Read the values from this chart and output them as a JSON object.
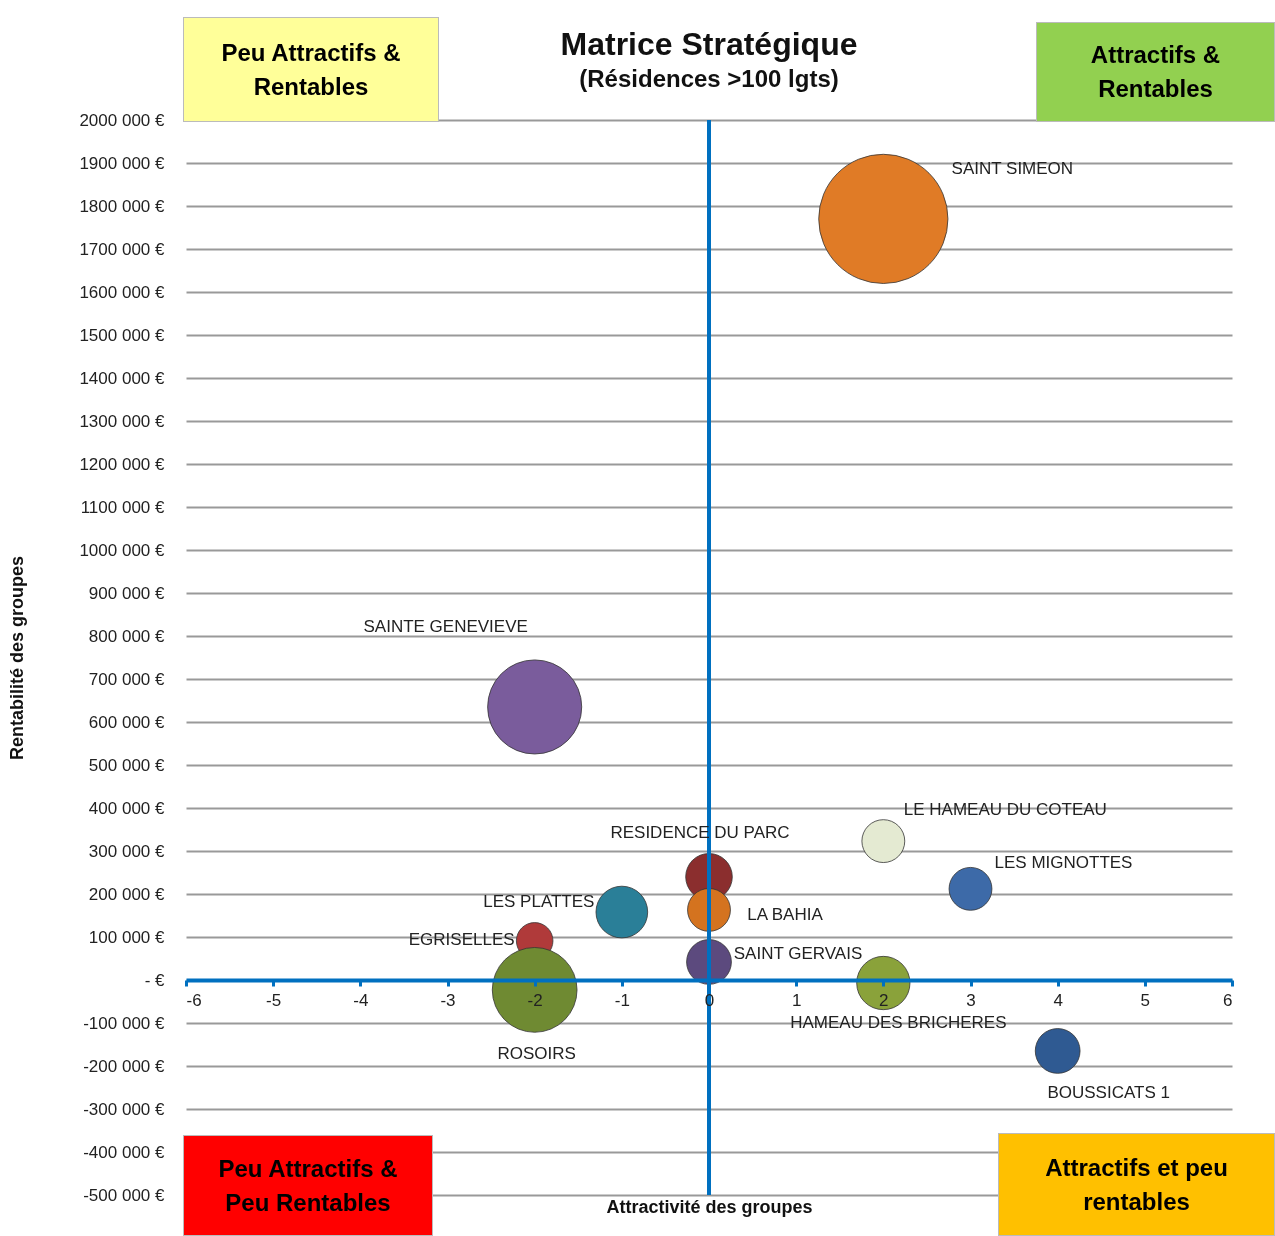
{
  "chart_data": {
    "type": "bubble",
    "title": "Matrice Stratégique",
    "subtitle": "(Résidences >100 lgts)",
    "xlabel": "Attractivité des groupes",
    "ylabel": "Rentabilité des groupes",
    "annotations": [
      "Peu Attractifs & Rentables",
      "Attractifs & Rentables",
      "Peu Attractifs & Peu Rentables",
      "Attractifs et peu rentables"
    ],
    "xlim": [
      -6,
      6
    ],
    "xticks": [
      -6,
      -5,
      -4,
      -3,
      -2,
      -1,
      0,
      1,
      2,
      3,
      4,
      5,
      6
    ],
    "ylim": [
      -500000,
      2000000
    ],
    "yticks": [
      {
        "value": 2000000,
        "label": "2000 000 €"
      },
      {
        "value": 1900000,
        "label": "1900 000 €"
      },
      {
        "value": 1800000,
        "label": "1800 000 €"
      },
      {
        "value": 1700000,
        "label": "1700 000 €"
      },
      {
        "value": 1600000,
        "label": "1600 000 €"
      },
      {
        "value": 1500000,
        "label": "1500 000 €"
      },
      {
        "value": 1400000,
        "label": "1400 000 €"
      },
      {
        "value": 1300000,
        "label": "1300 000 €"
      },
      {
        "value": 1200000,
        "label": "1200 000 €"
      },
      {
        "value": 1100000,
        "label": "1100 000 €"
      },
      {
        "value": 1000000,
        "label": "1000 000 €"
      },
      {
        "value": 900000,
        "label": "900 000 €"
      },
      {
        "value": 800000,
        "label": "800 000 €"
      },
      {
        "value": 700000,
        "label": "700 000 €"
      },
      {
        "value": 600000,
        "label": "600 000 €"
      },
      {
        "value": 500000,
        "label": "500 000 €"
      },
      {
        "value": 400000,
        "label": "400 000 €"
      },
      {
        "value": 300000,
        "label": "300 000 €"
      },
      {
        "value": 200000,
        "label": "200 000 €"
      },
      {
        "value": 100000,
        "label": "100 000 €"
      },
      {
        "value": 0,
        "label": "-   €"
      },
      {
        "value": -100000,
        "label": "-100 000 €"
      },
      {
        "value": -200000,
        "label": "-200 000 €"
      },
      {
        "value": -300000,
        "label": "-300 000 €"
      },
      {
        "value": -400000,
        "label": "-400 000 €"
      },
      {
        "value": -500000,
        "label": "-500 000 €"
      }
    ],
    "grid": "y",
    "ref_lines": [
      {
        "axis": "x",
        "value": 0,
        "color": "#0070c0"
      }
    ],
    "series": [
      {
        "name": "SAINT SIMEON",
        "color": "#e07b26",
        "x": [
          2
        ],
        "values": [
          1770000
        ],
        "sizes": [
          1
        ]
      },
      {
        "name": "SAINTE GENEVIEVE",
        "color": "#7a5c9c",
        "x": [
          -2
        ],
        "values": [
          635000
        ],
        "sizes": [
          0.53
        ]
      },
      {
        "name": "LE HAMEAU DU COTEAU",
        "color": "#e4ead2",
        "x": [
          2
        ],
        "values": [
          323000
        ],
        "sizes": [
          0.11
        ]
      },
      {
        "name": "LES MIGNOTTES",
        "color": "#3d6aa8",
        "x": [
          3
        ],
        "values": [
          212000
        ],
        "sizes": [
          0.11
        ]
      },
      {
        "name": "RESIDENCE DU PARC",
        "color": "#8b2e2e",
        "x": [
          0
        ],
        "values": [
          240000
        ],
        "sizes": [
          0.13
        ]
      },
      {
        "name": "LA BAHIA",
        "color": "#d4731f",
        "x": [
          0
        ],
        "values": [
          163000
        ],
        "sizes": [
          0.11
        ]
      },
      {
        "name": "LES PLATTES",
        "color": "#2a7f98",
        "x": [
          -1
        ],
        "values": [
          158000
        ],
        "sizes": [
          0.16
        ]
      },
      {
        "name": "EGRISELLES",
        "color": "#b03a3a",
        "x": [
          -2
        ],
        "values": [
          91000
        ],
        "sizes": [
          0.08
        ]
      },
      {
        "name": "SAINT GERVAIS",
        "color": "#5c4a7e",
        "x": [
          0
        ],
        "values": [
          42000
        ],
        "sizes": [
          0.12
        ]
      },
      {
        "name": "ROSOIRS",
        "color": "#6f8a32",
        "x": [
          -2
        ],
        "values": [
          -23000
        ],
        "sizes": [
          0.43
        ]
      },
      {
        "name": "HAMEAU DES BRICHERES",
        "color": "#8aa23a",
        "x": [
          2
        ],
        "values": [
          -7000
        ],
        "sizes": [
          0.17
        ]
      },
      {
        "name": "BOUSSICATS 1",
        "color": "#2f5a92",
        "x": [
          4
        ],
        "values": [
          -165000
        ],
        "sizes": [
          0.12
        ]
      }
    ]
  }
}
